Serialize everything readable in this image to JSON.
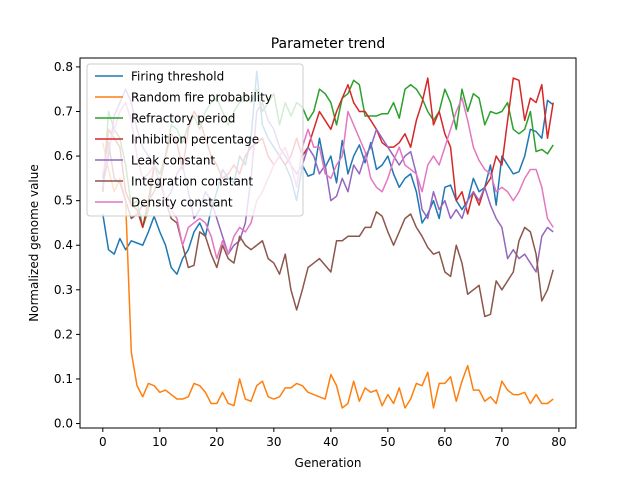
{
  "chart_data": {
    "type": "line",
    "title": "Parameter trend",
    "xlabel": "Generation",
    "ylabel": "Normalized genome value",
    "xlim": [
      -4,
      83
    ],
    "ylim": [
      -0.01,
      0.82
    ],
    "xticks": [
      0,
      10,
      20,
      30,
      40,
      50,
      60,
      70,
      80
    ],
    "xtick_labels": [
      "0",
      "10",
      "20",
      "30",
      "40",
      "50",
      "60",
      "70",
      "80"
    ],
    "yticks": [
      0.0,
      0.1,
      0.2,
      0.3,
      0.4,
      0.5,
      0.6,
      0.7,
      0.8
    ],
    "ytick_labels": [
      "0.0",
      "0.1",
      "0.2",
      "0.3",
      "0.4",
      "0.5",
      "0.6",
      "0.7",
      "0.8"
    ],
    "grid": false,
    "legend_position": "top-left",
    "series": [
      {
        "name": "Firing threshold",
        "color": "#1f77b4",
        "values": [
          0.47,
          0.39,
          0.38,
          0.415,
          0.39,
          0.41,
          0.405,
          0.4,
          0.43,
          0.465,
          0.43,
          0.4,
          0.35,
          0.335,
          0.37,
          0.39,
          0.43,
          0.45,
          0.42,
          0.48,
          0.52,
          0.57,
          0.55,
          0.54,
          0.6,
          0.58,
          0.64,
          0.79,
          0.67,
          0.64,
          0.62,
          0.6,
          0.58,
          0.55,
          0.5,
          0.58,
          0.555,
          0.56,
          0.64,
          0.575,
          0.6,
          0.54,
          0.635,
          0.56,
          0.6,
          0.625,
          0.585,
          0.63,
          0.57,
          0.58,
          0.6,
          0.56,
          0.53,
          0.55,
          0.56,
          0.52,
          0.45,
          0.47,
          0.5,
          0.46,
          0.53,
          0.535,
          0.5,
          0.48,
          0.5,
          0.55,
          0.52,
          0.53,
          0.58,
          0.49,
          0.6,
          0.58,
          0.56,
          0.565,
          0.6,
          0.66,
          0.655,
          0.64,
          0.725,
          0.715
        ]
      },
      {
        "name": "Random fire probability",
        "color": "#ff7f0e",
        "values": [
          0.63,
          0.57,
          0.52,
          0.55,
          0.5,
          0.16,
          0.085,
          0.06,
          0.09,
          0.085,
          0.07,
          0.075,
          0.065,
          0.055,
          0.055,
          0.06,
          0.09,
          0.085,
          0.07,
          0.045,
          0.045,
          0.07,
          0.045,
          0.04,
          0.1,
          0.055,
          0.05,
          0.085,
          0.095,
          0.06,
          0.055,
          0.06,
          0.08,
          0.08,
          0.09,
          0.085,
          0.07,
          0.065,
          0.06,
          0.055,
          0.11,
          0.085,
          0.035,
          0.045,
          0.095,
          0.05,
          0.08,
          0.07,
          0.075,
          0.04,
          0.065,
          0.045,
          0.08,
          0.035,
          0.055,
          0.09,
          0.085,
          0.115,
          0.035,
          0.09,
          0.09,
          0.105,
          0.05,
          0.095,
          0.13,
          0.075,
          0.075,
          0.05,
          0.06,
          0.045,
          0.095,
          0.075,
          0.065,
          0.065,
          0.07,
          0.045,
          0.065,
          0.045,
          0.045,
          0.055
        ]
      },
      {
        "name": "Refractory period",
        "color": "#2ca02c",
        "values": [
          0.52,
          0.7,
          0.66,
          0.64,
          0.58,
          0.49,
          0.5,
          0.44,
          0.48,
          0.58,
          0.56,
          0.6,
          0.67,
          0.66,
          0.63,
          0.67,
          0.69,
          0.66,
          0.7,
          0.72,
          0.73,
          0.7,
          0.67,
          0.7,
          0.72,
          0.74,
          0.72,
          0.75,
          0.7,
          0.72,
          0.74,
          0.67,
          0.72,
          0.69,
          0.72,
          0.71,
          0.68,
          0.7,
          0.75,
          0.74,
          0.72,
          0.67,
          0.73,
          0.74,
          0.77,
          0.76,
          0.69,
          0.69,
          0.69,
          0.695,
          0.695,
          0.72,
          0.685,
          0.75,
          0.76,
          0.75,
          0.73,
          0.7,
          0.68,
          0.7,
          0.75,
          0.72,
          0.66,
          0.75,
          0.7,
          0.74,
          0.73,
          0.67,
          0.7,
          0.695,
          0.7,
          0.72,
          0.66,
          0.65,
          0.66,
          0.7,
          0.61,
          0.615,
          0.605,
          0.625
        ]
      },
      {
        "name": "Inhibition percentage",
        "color": "#d62728",
        "values": [
          0.52,
          0.66,
          0.64,
          0.62,
          0.52,
          0.49,
          0.48,
          0.44,
          0.5,
          0.58,
          0.54,
          0.6,
          0.65,
          0.63,
          0.57,
          0.66,
          0.7,
          0.68,
          0.64,
          0.6,
          0.58,
          0.55,
          0.56,
          0.58,
          0.56,
          0.6,
          0.62,
          0.63,
          0.64,
          0.6,
          0.58,
          0.6,
          0.58,
          0.6,
          0.64,
          0.6,
          0.62,
          0.66,
          0.7,
          0.68,
          0.66,
          0.7,
          0.73,
          0.76,
          0.72,
          0.7,
          0.7,
          0.68,
          0.66,
          0.63,
          0.62,
          0.62,
          0.63,
          0.65,
          0.62,
          0.68,
          0.72,
          0.775,
          0.67,
          0.7,
          0.65,
          0.62,
          0.5,
          0.52,
          0.47,
          0.52,
          0.49,
          0.53,
          0.55,
          0.6,
          0.58,
          0.68,
          0.775,
          0.77,
          0.68,
          0.73,
          0.72,
          0.76,
          0.64,
          0.72
        ]
      },
      {
        "name": "Leak constant",
        "color": "#9467bd",
        "values": [
          0.53,
          0.6,
          0.69,
          0.72,
          0.75,
          0.72,
          0.66,
          0.62,
          0.6,
          0.58,
          0.54,
          0.5,
          0.52,
          0.56,
          0.58,
          0.52,
          0.46,
          0.48,
          0.52,
          0.5,
          0.46,
          0.42,
          0.38,
          0.4,
          0.41,
          0.45,
          0.55,
          0.7,
          0.72,
          0.68,
          0.66,
          0.62,
          0.6,
          0.58,
          0.56,
          0.58,
          0.62,
          0.6,
          0.56,
          0.58,
          0.5,
          0.51,
          0.55,
          0.52,
          0.58,
          0.56,
          0.6,
          0.62,
          0.66,
          0.64,
          0.62,
          0.6,
          0.58,
          0.6,
          0.61,
          0.56,
          0.48,
          0.46,
          0.52,
          0.48,
          0.5,
          0.46,
          0.48,
          0.46,
          0.5,
          0.52,
          0.5,
          0.53,
          0.49,
          0.46,
          0.44,
          0.37,
          0.39,
          0.37,
          0.38,
          0.36,
          0.34,
          0.42,
          0.44,
          0.43
        ]
      },
      {
        "name": "Integration constant",
        "color": "#8c564b",
        "values": [
          0.55,
          0.63,
          0.55,
          0.54,
          0.5,
          0.46,
          0.47,
          0.49,
          0.5,
          0.52,
          0.55,
          0.5,
          0.46,
          0.45,
          0.4,
          0.35,
          0.355,
          0.43,
          0.42,
          0.38,
          0.35,
          0.4,
          0.37,
          0.36,
          0.42,
          0.4,
          0.39,
          0.4,
          0.41,
          0.37,
          0.36,
          0.335,
          0.38,
          0.3,
          0.255,
          0.3,
          0.35,
          0.36,
          0.37,
          0.355,
          0.34,
          0.41,
          0.41,
          0.42,
          0.42,
          0.42,
          0.44,
          0.44,
          0.475,
          0.465,
          0.43,
          0.4,
          0.43,
          0.46,
          0.47,
          0.44,
          0.42,
          0.395,
          0.38,
          0.385,
          0.34,
          0.33,
          0.4,
          0.36,
          0.29,
          0.3,
          0.31,
          0.24,
          0.245,
          0.32,
          0.3,
          0.32,
          0.34,
          0.41,
          0.44,
          0.43,
          0.38,
          0.275,
          0.3,
          0.345
        ]
      },
      {
        "name": "Density constant",
        "color": "#e377c2",
        "values": [
          0.56,
          0.62,
          0.66,
          0.7,
          0.72,
          0.68,
          0.6,
          0.55,
          0.56,
          0.58,
          0.54,
          0.5,
          0.48,
          0.46,
          0.4,
          0.44,
          0.45,
          0.46,
          0.45,
          0.42,
          0.37,
          0.41,
          0.38,
          0.42,
          0.44,
          0.43,
          0.45,
          0.5,
          0.52,
          0.55,
          0.58,
          0.6,
          0.62,
          0.58,
          0.53,
          0.62,
          0.66,
          0.62,
          0.62,
          0.56,
          0.55,
          0.58,
          0.6,
          0.7,
          0.67,
          0.64,
          0.61,
          0.55,
          0.53,
          0.52,
          0.55,
          0.59,
          0.62,
          0.58,
          0.57,
          0.56,
          0.52,
          0.58,
          0.6,
          0.58,
          0.62,
          0.66,
          0.7,
          0.73,
          0.68,
          0.62,
          0.59,
          0.57,
          0.56,
          0.52,
          0.53,
          0.52,
          0.5,
          0.52,
          0.55,
          0.57,
          0.57,
          0.53,
          0.46,
          0.44
        ]
      }
    ]
  }
}
